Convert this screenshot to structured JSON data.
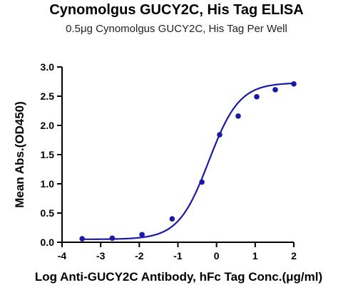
{
  "chart_data": {
    "type": "scatter",
    "title": "Cynomolgus GUCY2C, His Tag ELISA",
    "subtitle": "0.5μg Cynomolgus GUCY2C, His Tag Per Well",
    "xlabel": "Log Anti-GUCY2C Antibody, hFc Tag Conc.(μg/ml)",
    "ylabel": "Mean Abs.(OD450)",
    "xlim": [
      -4,
      2
    ],
    "ylim": [
      0,
      3
    ],
    "x_ticks": [
      "-4",
      "-3",
      "-2",
      "-1",
      "0",
      "1",
      "2"
    ],
    "y_ticks": [
      "0.0",
      "0.5",
      "1.0",
      "1.5",
      "2.0",
      "2.5",
      "3.0"
    ],
    "grid": false,
    "series": [
      {
        "color": "#1a1aa6",
        "points": [
          {
            "x": -3.48,
            "y": 0.06
          },
          {
            "x": -2.7,
            "y": 0.07
          },
          {
            "x": -1.93,
            "y": 0.13
          },
          {
            "x": -1.15,
            "y": 0.4
          },
          {
            "x": -0.38,
            "y": 1.03
          },
          {
            "x": 0.08,
            "y": 1.84
          },
          {
            "x": 0.56,
            "y": 2.16
          },
          {
            "x": 1.04,
            "y": 2.49
          },
          {
            "x": 1.52,
            "y": 2.61
          },
          {
            "x": 2.0,
            "y": 2.71
          }
        ],
        "fit": {
          "bottom": 0.05,
          "top": 2.73,
          "logEC50": -0.2,
          "hill": 1.1
        }
      }
    ]
  }
}
